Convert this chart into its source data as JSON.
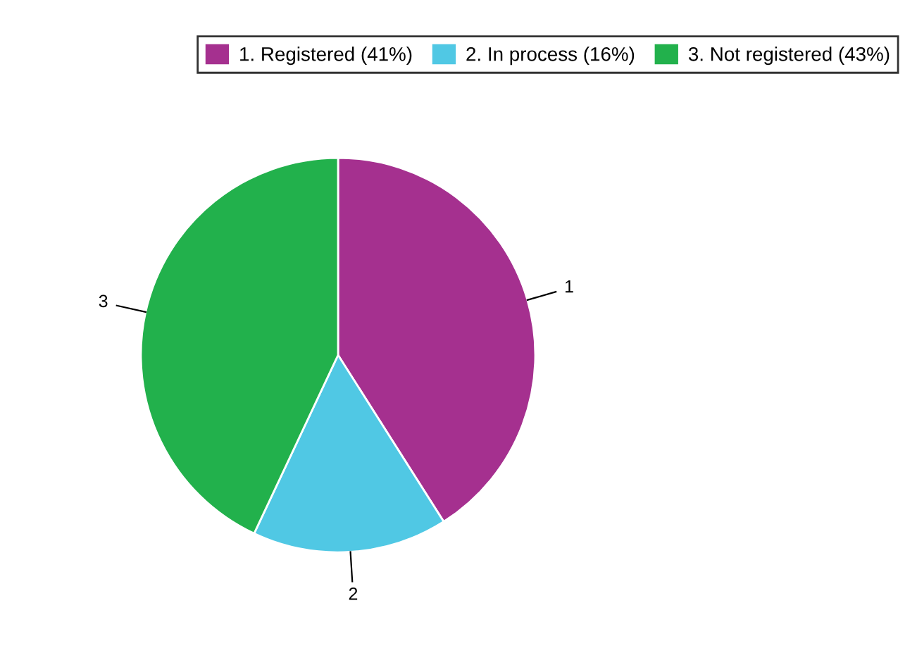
{
  "chart_data": {
    "type": "pie",
    "categories": [
      "1. Registered (41%)",
      "2. In process (16%)",
      "3. Not registered (43%)"
    ],
    "values": [
      41,
      16,
      43
    ],
    "colors": [
      "#a5308f",
      "#50c8e4",
      "#22b14c"
    ],
    "annotations": [
      "1",
      "2",
      "3"
    ],
    "legend": "top right"
  }
}
